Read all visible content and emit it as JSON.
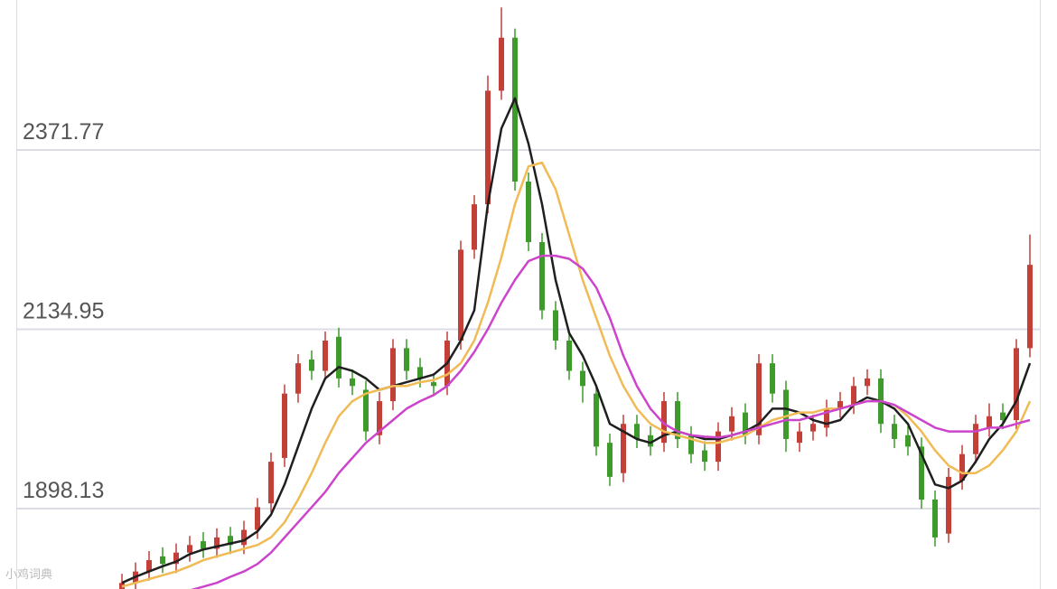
{
  "chart_data": {
    "type": "candlestick",
    "ylim": [
      1791.9,
      2569.8
    ],
    "yticks": [
      1898.13,
      2134.95,
      2371.77
    ],
    "grid": true,
    "up_color": "#c33f38",
    "down_color": "#3e9a2a",
    "watermark": "小鸡词典",
    "open": [
      1790,
      1800,
      1815,
      1835,
      1825,
      1840,
      1855,
      1845,
      1862,
      1850,
      1870,
      1905,
      1965,
      2050,
      2095,
      2080,
      2125,
      2070,
      2055,
      1995,
      2040,
      2110,
      2085,
      2065,
      2060,
      2120,
      2240,
      2300,
      2450,
      2520,
      2330,
      2250,
      2160,
      2120,
      2080,
      2050,
      1985,
      1945,
      2010,
      1995,
      1985,
      2040,
      1995,
      1975,
      1960,
      2000,
      2025,
      1995,
      2090,
      2055,
      1985,
      2000,
      2005,
      2030,
      2035,
      2060,
      2070,
      2010,
      1995,
      1980,
      1910,
      1865,
      1935,
      1970,
      2005,
      2025,
      2015,
      2110
    ],
    "high": [
      1812,
      1827,
      1842,
      1847,
      1852,
      1862,
      1867,
      1872,
      1874,
      1882,
      1912,
      1972,
      2062,
      2102,
      2107,
      2132,
      2137,
      2082,
      2067,
      2052,
      2122,
      2122,
      2097,
      2077,
      2132,
      2252,
      2312,
      2470,
      2560,
      2532,
      2342,
      2262,
      2172,
      2132,
      2092,
      2062,
      1997,
      2022,
      2022,
      2007,
      2052,
      2052,
      2007,
      1987,
      2012,
      2032,
      2037,
      2102,
      2102,
      2067,
      2012,
      2022,
      2042,
      2052,
      2072,
      2082,
      2082,
      2022,
      2007,
      1992,
      1922,
      1952,
      1982,
      2022,
      2037,
      2037,
      2122,
      2260
    ],
    "low": [
      1778,
      1788,
      1803,
      1813,
      1813,
      1828,
      1833,
      1833,
      1838,
      1838,
      1858,
      1893,
      1953,
      2038,
      2068,
      2068,
      2058,
      2048,
      1988,
      1983,
      2028,
      2068,
      2058,
      2048,
      2048,
      2108,
      2228,
      2288,
      2438,
      2318,
      2238,
      2148,
      2108,
      2068,
      2038,
      1968,
      1928,
      1933,
      1978,
      1968,
      1973,
      1978,
      1958,
      1948,
      1948,
      1988,
      1983,
      1983,
      2038,
      1973,
      1973,
      1988,
      1993,
      2018,
      2023,
      2048,
      1998,
      1978,
      1968,
      1898,
      1848,
      1853,
      1923,
      1958,
      1993,
      2003,
      2003,
      2098
    ],
    "close": [
      1800,
      1815,
      1830,
      1825,
      1840,
      1850,
      1845,
      1860,
      1850,
      1870,
      1900,
      1960,
      2050,
      2090,
      2080,
      2120,
      2070,
      2060,
      2000,
      2040,
      2110,
      2080,
      2070,
      2060,
      2120,
      2240,
      2300,
      2450,
      2520,
      2330,
      2250,
      2160,
      2120,
      2080,
      2060,
      1980,
      1940,
      2010,
      1990,
      1980,
      2040,
      1990,
      1970,
      1960,
      2000,
      2020,
      1995,
      2090,
      2050,
      1990,
      2000,
      2010,
      2030,
      2040,
      2060,
      2070,
      2010,
      1990,
      1980,
      1910,
      1860,
      1940,
      1970,
      2010,
      2020,
      2015,
      2110,
      2220
    ],
    "series": [
      {
        "color": "#1f1f1f",
        "values": [
          1800,
          1808,
          1815,
          1822,
          1828,
          1838,
          1844,
          1848,
          1852,
          1856,
          1868,
          1890,
          1930,
          1980,
          2030,
          2070,
          2085,
          2080,
          2070,
          2055,
          2060,
          2065,
          2070,
          2075,
          2090,
          2120,
          2160,
          2300,
          2400,
          2440,
          2380,
          2300,
          2200,
          2130,
          2100,
          2060,
          2010,
          2000,
          1990,
          1985,
          1995,
          2000,
          1995,
          1990,
          1990,
          1995,
          2000,
          2010,
          2030,
          2030,
          2025,
          2015,
          2010,
          2015,
          2035,
          2045,
          2040,
          2030,
          2010,
          1970,
          1930,
          1925,
          1935,
          1960,
          1990,
          2010,
          2040,
          2090
        ]
      },
      {
        "color": "#f0bb55",
        "values": [
          1795,
          1800,
          1805,
          1810,
          1815,
          1822,
          1830,
          1835,
          1840,
          1845,
          1850,
          1860,
          1880,
          1910,
          1945,
          1985,
          2020,
          2040,
          2050,
          2055,
          2060,
          2060,
          2065,
          2068,
          2075,
          2090,
          2120,
          2170,
          2230,
          2300,
          2350,
          2355,
          2320,
          2260,
          2200,
          2150,
          2100,
          2060,
          2030,
          2010,
          2000,
          1995,
          1990,
          1985,
          1985,
          1990,
          1995,
          2005,
          2015,
          2020,
          2025,
          2025,
          2030,
          2030,
          2035,
          2040,
          2040,
          2035,
          2020,
          2000,
          1975,
          1955,
          1945,
          1945,
          1955,
          1975,
          2000,
          2040
        ]
      },
      {
        "color": "#cc44cc",
        "values": [
          1780,
          1782,
          1784,
          1786,
          1788,
          1790,
          1795,
          1800,
          1808,
          1815,
          1825,
          1840,
          1860,
          1880,
          1900,
          1920,
          1945,
          1965,
          1985,
          2000,
          2015,
          2030,
          2040,
          2048,
          2060,
          2080,
          2105,
          2135,
          2170,
          2200,
          2225,
          2232,
          2232,
          2228,
          2215,
          2190,
          2150,
          2100,
          2060,
          2030,
          2010,
          2000,
          1995,
          1993,
          1992,
          1995,
          2000,
          2005,
          2010,
          2015,
          2015,
          2020,
          2025,
          2030,
          2035,
          2040,
          2040,
          2035,
          2025,
          2015,
          2005,
          2000,
          2000,
          2000,
          2005,
          2005,
          2010,
          2015
        ]
      }
    ]
  }
}
